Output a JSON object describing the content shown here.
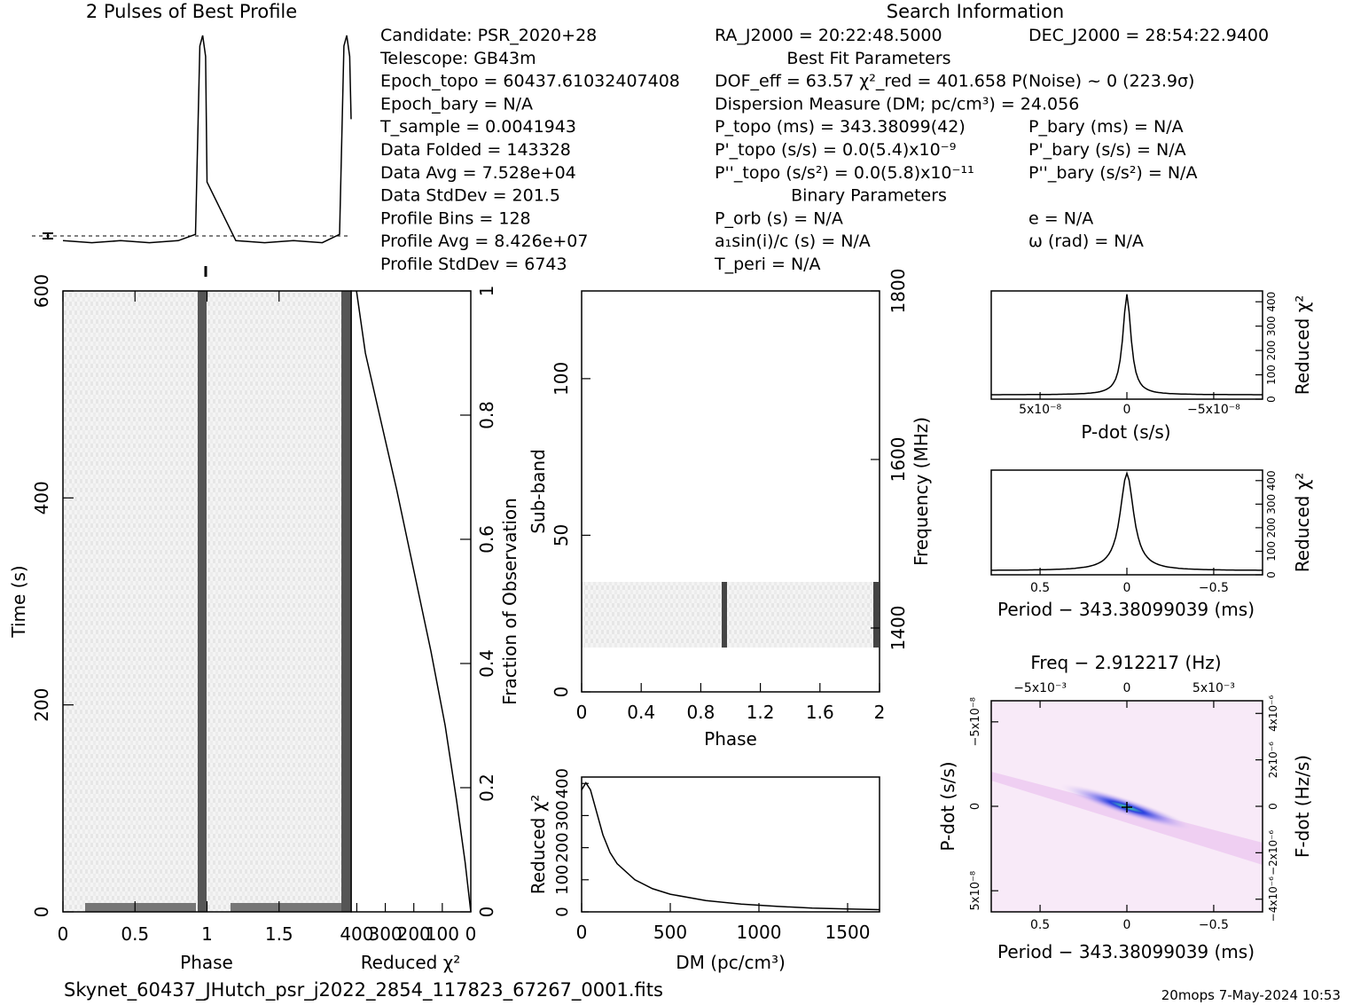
{
  "header": {
    "left_title": "2 Pulses of Best Profile",
    "right_title": "Search Information"
  },
  "info_col1": [
    "Candidate:  PSR_2020+28",
    "Telescope:  GB43m",
    "Epoch_topo = 60437.61032407408",
    "Epoch_bary = N/A",
    "T_sample       =  0.0041943",
    "Data Folded    =  143328",
    "Data Avg       =  7.528e+04",
    "Data StdDev    =  201.5",
    "Profile Bins   =  128",
    "Profile Avg    =  8.426e+07",
    "Profile StdDev =  6743"
  ],
  "info_col2": [
    "RA_J2000 = 20:22:48.5000",
    "Best Fit Parameters",
    "DOF_eff = 63.57  χ²_red = 401.658  P(Noise) ~ 0   (223.9σ)",
    "Dispersion Measure (DM; pc/cm³) = 24.056",
    "P_topo (ms) =  343.38099(42)",
    "P'_topo (s/s) = 0.0(5.4)x10⁻⁹",
    "P''_topo (s/s²) = 0.0(5.8)x10⁻¹¹",
    "Binary Parameters",
    "P_orb (s) = N/A",
    "a₁sin(i)/c (s) = N/A",
    "T_peri = N/A"
  ],
  "info_col3": [
    "DEC_J2000 = 28:54:22.9400",
    "",
    "",
    "",
    "P_bary (ms) = N/A",
    "P'_bary (s/s) = N/A",
    "P''_bary (s/s²) = N/A",
    "",
    "e = N/A",
    "ω (rad) = N/A",
    ""
  ],
  "footer": {
    "filename": "Skynet_60437_JHutch_psr_j2022_2854_117823_67267_0001.fits",
    "stamp": "20mops   7-May-2024 10:53"
  },
  "colors": {
    "ink": "#000000",
    "grey_map": "#707070",
    "ppdot_core": "#2020d0",
    "ppdot_peak": "#40e0a0",
    "ppdot_halo": "#f0d0f0"
  },
  "chart_data": [
    {
      "id": "profile",
      "type": "line",
      "title": "2 Pulses of Best Profile",
      "x": [
        0.0,
        0.2,
        0.4,
        0.6,
        0.8,
        0.92,
        0.95,
        0.97,
        0.99,
        1.0,
        1.2,
        1.4,
        1.6,
        1.8,
        1.92,
        1.95,
        1.97,
        1.99,
        2.0
      ],
      "y": [
        0.02,
        0.01,
        0.02,
        0.01,
        0.02,
        0.05,
        0.95,
        1.0,
        0.9,
        0.3,
        0.02,
        0.01,
        0.02,
        0.01,
        0.05,
        0.95,
        1.0,
        0.9,
        0.6
      ],
      "xlim": [
        0,
        2
      ]
    },
    {
      "id": "time-phase",
      "type": "heatmap",
      "xlabel": "Phase",
      "ylabel": "Time (s)",
      "xlim": [
        0,
        2
      ],
      "ylim": [
        0,
        600
      ],
      "x_ticks": [
        "0",
        "0.5",
        "1",
        "1.5"
      ],
      "y_ticks": [
        "0",
        "200",
        "400",
        "600"
      ],
      "pulse_phases": [
        0.97,
        1.97
      ],
      "right_axis_label": "Fraction of Observation",
      "right_ticks": [
        "0",
        "0.2",
        "0.4",
        "0.6",
        "0.8",
        "1"
      ]
    },
    {
      "id": "chi-vs-time",
      "type": "line",
      "xlabel": "Reduced χ²",
      "x_ticks": [
        "400",
        "300",
        "200",
        "100",
        "0"
      ],
      "x": [
        0.0,
        20,
        50,
        90,
        140,
        200,
        260,
        320,
        370,
        401
      ],
      "y": [
        0.0,
        0.08,
        0.18,
        0.3,
        0.42,
        0.55,
        0.68,
        0.8,
        0.9,
        1.0
      ]
    },
    {
      "id": "subband-phase",
      "type": "heatmap",
      "xlabel": "Phase",
      "ylabel": "Sub-band",
      "right_axis_label": "Frequency (MHz)",
      "xlim": [
        0,
        2
      ],
      "ylim": [
        0,
        128
      ],
      "x_ticks": [
        "0",
        "0.4",
        "0.8",
        "1.2",
        "1.6",
        "2"
      ],
      "y_ticks": [
        "0",
        "50",
        "100"
      ],
      "right_ticks": [
        "1400",
        "1600",
        "1800"
      ],
      "active_subbands": [
        14,
        35
      ],
      "pulse_phases": [
        0.97,
        1.98
      ]
    },
    {
      "id": "dm-curve",
      "type": "line",
      "xlabel": "DM (pc/cm³)",
      "ylabel": "Reduced χ²",
      "x_ticks": [
        "0",
        "500",
        "1000",
        "1500"
      ],
      "y_ticks": [
        "0",
        "100",
        "200",
        "300",
        "400"
      ],
      "x": [
        0,
        24,
        50,
        80,
        120,
        160,
        200,
        300,
        400,
        500,
        700,
        900,
        1100,
        1300,
        1500,
        1680
      ],
      "y": [
        380,
        402,
        380,
        320,
        240,
        185,
        150,
        100,
        72,
        55,
        35,
        24,
        17,
        12,
        9,
        7
      ],
      "xlim": [
        0,
        1680
      ],
      "ylim": [
        0,
        420
      ]
    },
    {
      "id": "pdot-chi",
      "type": "line",
      "xlabel": "P-dot (s/s)",
      "ylabel": "Reduced χ²",
      "x_ticks": [
        "5x10⁻⁸",
        "0",
        "−5x10⁻⁸"
      ],
      "y_ticks": [
        "0",
        "100",
        "200",
        "300",
        "400"
      ]
    },
    {
      "id": "period-chi",
      "type": "line",
      "xlabel": "Period − 343.38099039 (ms)",
      "ylabel": "Reduced χ²",
      "x_ticks": [
        "0.5",
        "0",
        "−0.5"
      ],
      "y_ticks": [
        "0",
        "100",
        "200",
        "300",
        "400"
      ]
    },
    {
      "id": "p-pdot",
      "type": "heatmap",
      "title": "Freq − 2.912217 (Hz)",
      "xlabel": "Period − 343.38099039 (ms)",
      "ylabel": "P-dot (s/s)",
      "right_axis_label": "F-dot (Hz/s)",
      "x_ticks": [
        "0.5",
        "0",
        "−0.5"
      ],
      "top_ticks": [
        "−5x10⁻³",
        "0",
        "5x10⁻³"
      ],
      "y_ticks": [
        "−5x10⁻⁸",
        "0",
        "5x10⁻⁸"
      ],
      "right_ticks": [
        "4x10⁻⁶",
        "2x10⁻⁶",
        "0",
        "−2x10⁻⁶",
        "−4x10⁻⁶"
      ]
    }
  ]
}
